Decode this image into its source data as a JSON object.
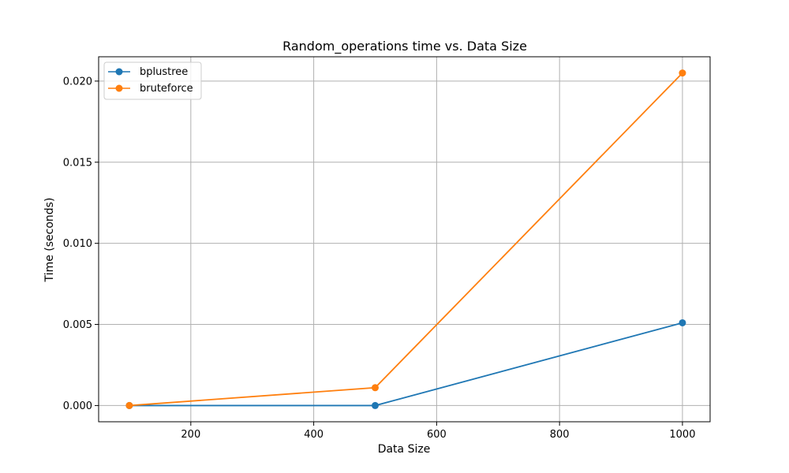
{
  "chart_data": {
    "type": "line",
    "title": "Random_operations time vs. Data Size",
    "xlabel": "Data Size",
    "ylabel": "Time (seconds)",
    "xlim": [
      50,
      1045
    ],
    "ylim": [
      -0.001,
      0.0215
    ],
    "xticks": [
      200,
      400,
      600,
      800,
      1000
    ],
    "xtick_labels": [
      "200",
      "400",
      "600",
      "800",
      "1000"
    ],
    "yticks": [
      0.0,
      0.005,
      0.01,
      0.015,
      0.02
    ],
    "ytick_labels": [
      "0.000",
      "0.005",
      "0.010",
      "0.015",
      "0.020"
    ],
    "grid": true,
    "legend_position": "top-left",
    "x": [
      100,
      500,
      1000
    ],
    "series": [
      {
        "name": "bplustree",
        "color": "#1f77b4",
        "values": [
          0.0,
          0.0,
          0.0051
        ]
      },
      {
        "name": "bruteforce",
        "color": "#ff7f0e",
        "values": [
          0.0,
          0.0011,
          0.0205
        ]
      }
    ]
  }
}
